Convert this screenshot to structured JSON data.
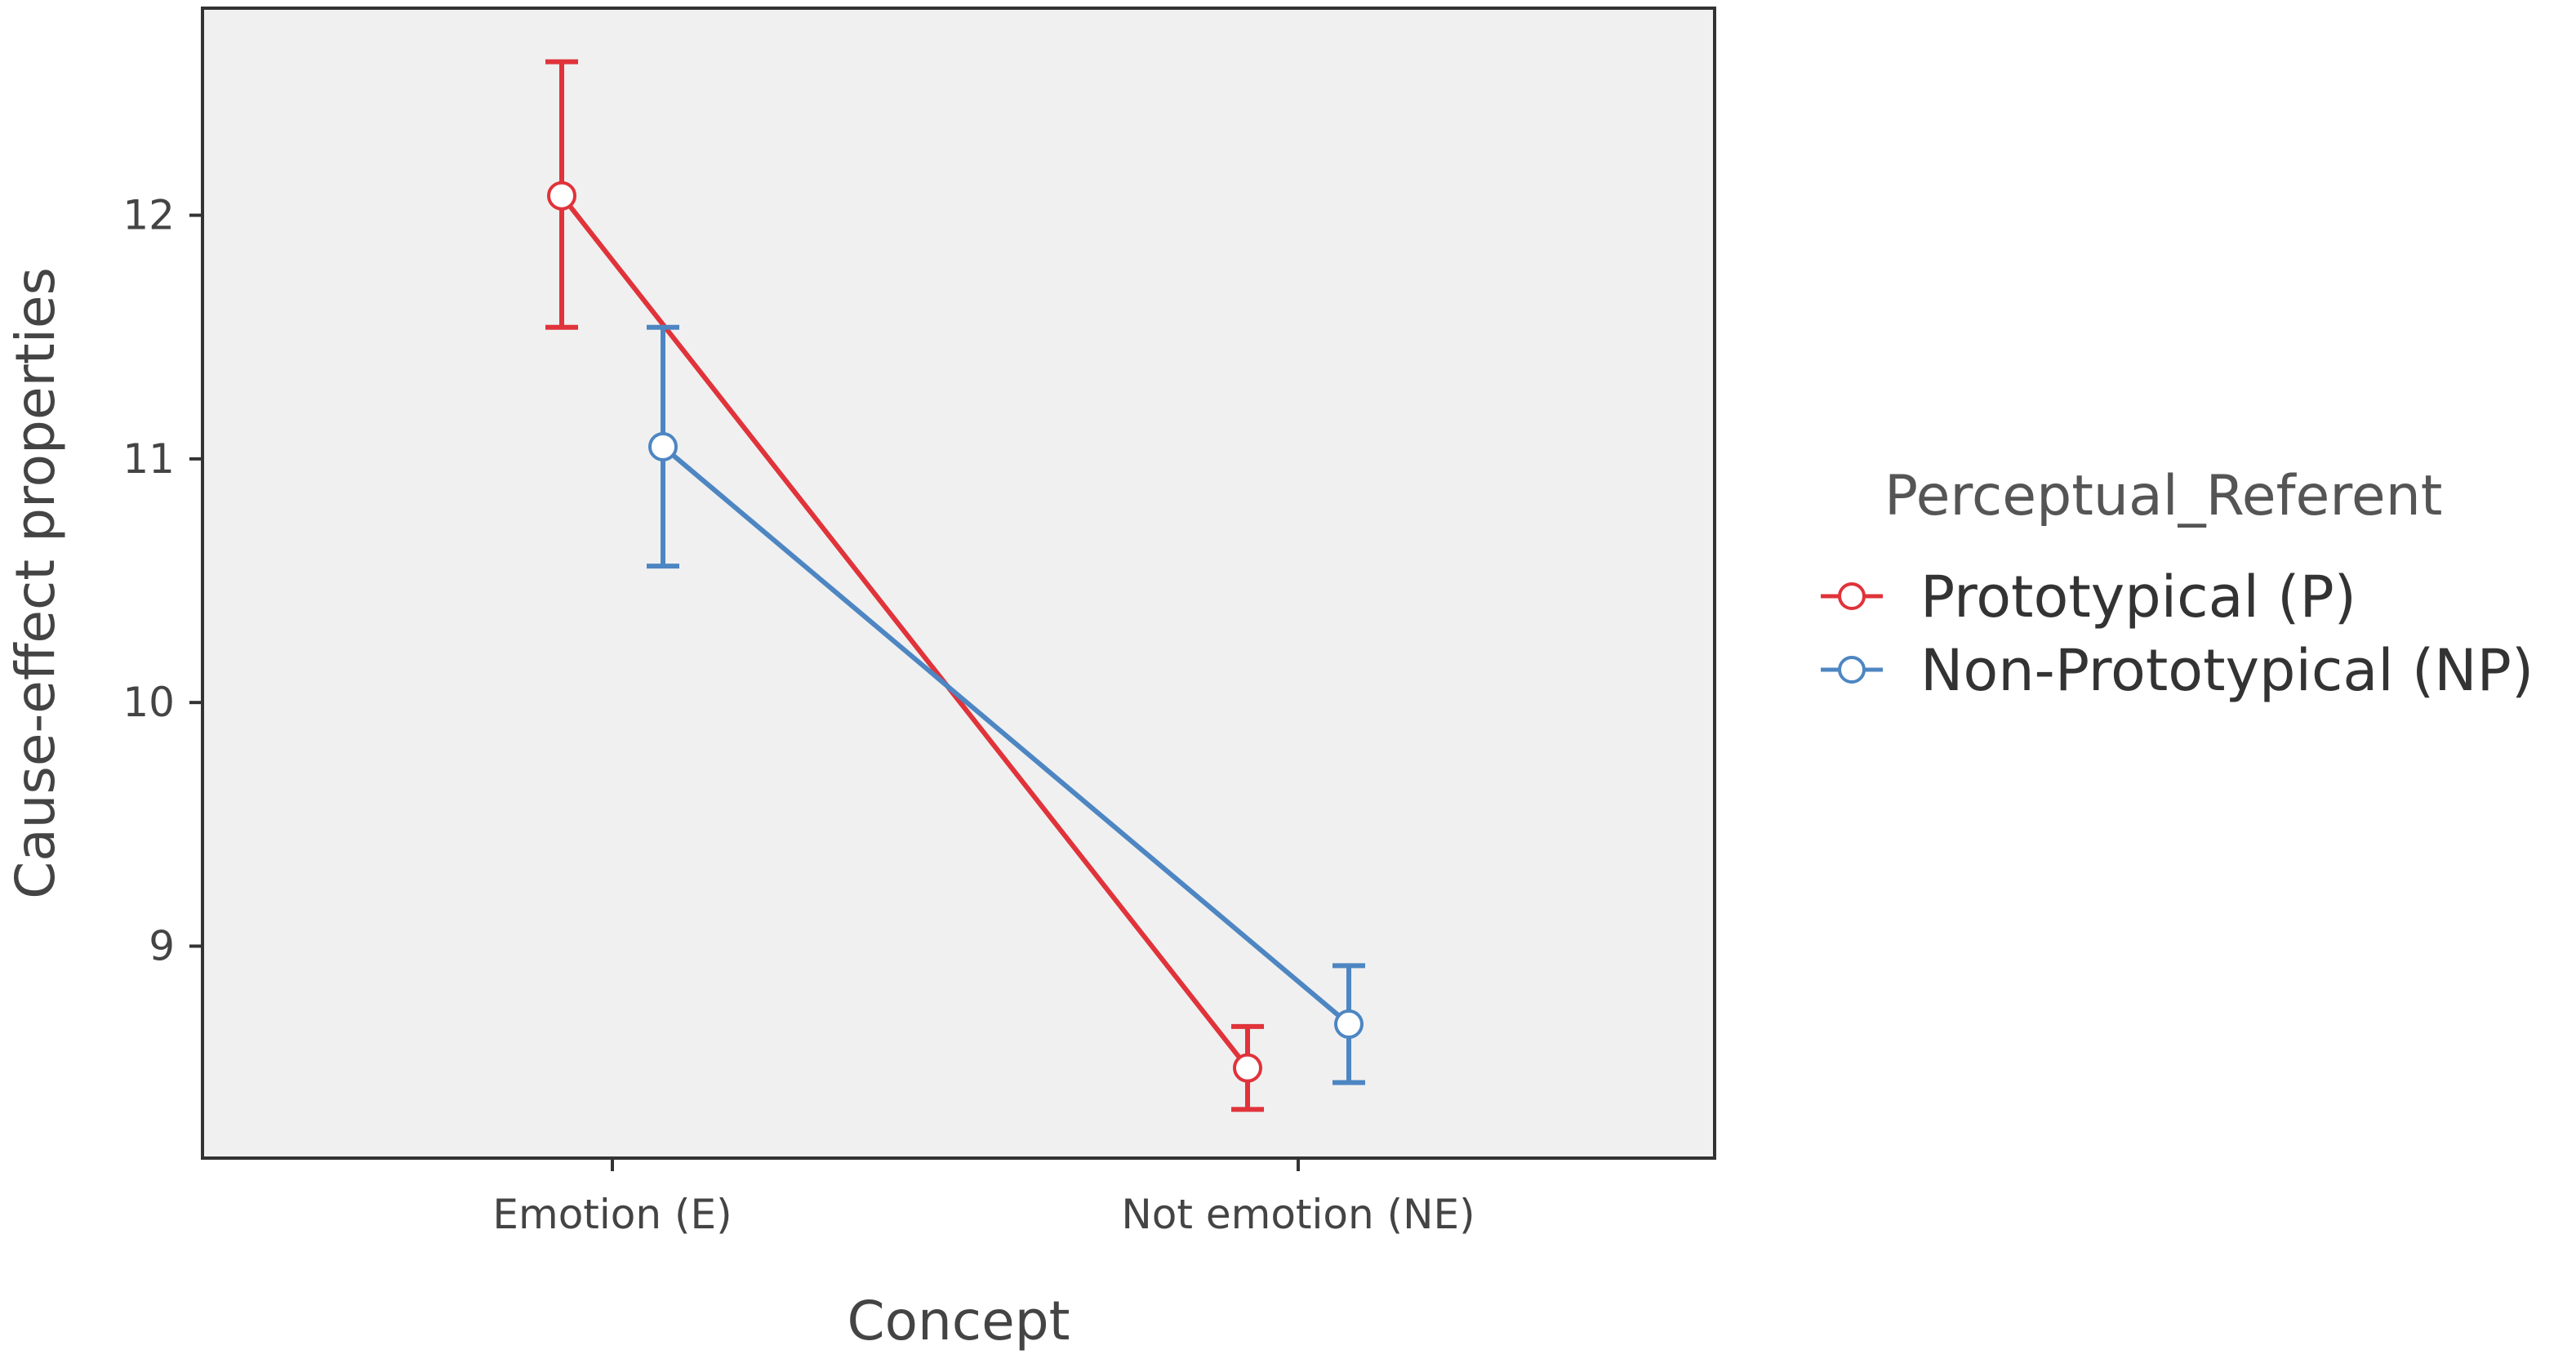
{
  "chart_data": {
    "type": "line",
    "xlabel": "Concept",
    "ylabel": "Cause-effect properties",
    "categories": [
      "Emotion (E)",
      "Not emotion (NE)"
    ],
    "yticks": [
      9,
      10,
      11,
      12
    ],
    "ylim": [
      8.13,
      12.85
    ],
    "grid": false,
    "background": "#f0f0f0",
    "legend": {
      "title": "Perceptual_Referent",
      "placement": "right"
    },
    "series": [
      {
        "name": "Prototypical (P)",
        "color": "#e0333a",
        "values": [
          12.08,
          8.5
        ],
        "ci_lower": [
          11.54,
          8.33
        ],
        "ci_upper": [
          12.63,
          8.67
        ]
      },
      {
        "name": "Non-Prototypical (NP)",
        "color": "#4d86c2",
        "values": [
          11.05,
          8.68
        ],
        "ci_lower": [
          10.56,
          8.44
        ],
        "ci_upper": [
          11.54,
          8.92
        ]
      }
    ]
  }
}
